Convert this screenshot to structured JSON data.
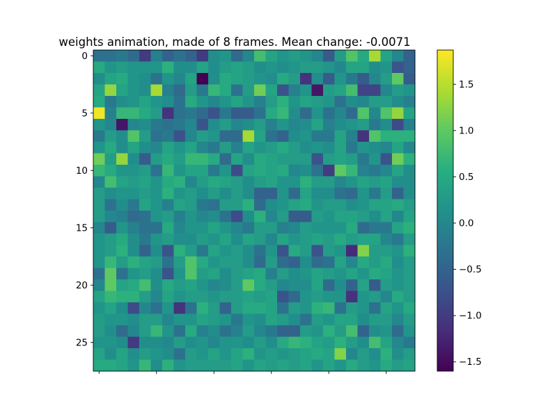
{
  "chart_data": {
    "type": "heatmap",
    "title": "weights animation, made of 8 frames. Mean change: -0.0071",
    "rows": 28,
    "cols": 28,
    "vmin": -1.6,
    "vmax": 1.87,
    "colormap": "viridis",
    "y_ticks": [
      0,
      5,
      10,
      15,
      20,
      25
    ],
    "y_tick_labels": [
      "0",
      "5",
      "10",
      "15",
      "20",
      "25"
    ],
    "x_ticks": [
      0,
      5,
      10,
      15,
      20,
      25
    ],
    "x_tick_labels": [
      "",
      "",
      "",
      "",
      "",
      ""
    ],
    "colorbar": {
      "ticks": [
        1.5,
        1.0,
        0.5,
        0.0,
        -0.5,
        -1.0,
        -1.5
      ],
      "tick_labels": [
        "1.5",
        "1.0",
        "0.5",
        "0.0",
        "−0.5",
        "−1.0",
        "−1.5"
      ]
    },
    "grid": false,
    "legend": "none",
    "values": [
      [
        -0.3,
        -0.3,
        -0.2,
        -0.4,
        -1.0,
        -0.1,
        -0.5,
        -0.3,
        -0.5,
        -1.0,
        0.1,
        0.2,
        -0.4,
        0.0,
        0.8,
        0.4,
        0.2,
        0.3,
        0.2,
        0.0,
        -0.6,
        0.3,
        0.9,
        0.5,
        1.4,
        0.4,
        0.0,
        -0.5
      ],
      [
        0.5,
        0.2,
        0.3,
        0.2,
        0.2,
        0.2,
        0.6,
        0.1,
        0.1,
        0.4,
        0.1,
        0.3,
        0.4,
        0.3,
        0.1,
        0.2,
        0.1,
        0.2,
        0.3,
        0.3,
        0.2,
        0.0,
        0.4,
        0.4,
        0.1,
        0.2,
        -0.7,
        -0.5
      ],
      [
        0.1,
        0.4,
        0.5,
        0.2,
        0.1,
        -0.3,
        0.2,
        0.0,
        0.4,
        -1.6,
        0.1,
        0.5,
        0.4,
        0.3,
        0.2,
        0.1,
        0.5,
        0.3,
        -1.1,
        0.1,
        -0.6,
        0.2,
        -0.2,
        -0.6,
        0.0,
        0.3,
        1.0,
        -0.6
      ],
      [
        0.4,
        1.3,
        0.4,
        0.2,
        0.1,
        1.4,
        -0.1,
        -0.4,
        0.3,
        -0.2,
        0.7,
        0.5,
        -0.3,
        0.3,
        1.1,
        0.4,
        -0.7,
        -0.1,
        0.2,
        -1.4,
        0.3,
        0.4,
        0.8,
        -0.9,
        -0.9,
        0.0,
        0.3,
        0.2
      ],
      [
        0.5,
        -0.2,
        0.1,
        0.2,
        0.4,
        0.2,
        0.1,
        -0.3,
        0.5,
        0.2,
        0.0,
        0.2,
        0.4,
        0.2,
        -0.1,
        0.3,
        0.6,
        0.2,
        0.4,
        0.3,
        0.2,
        -0.3,
        0.1,
        0.0,
        0.3,
        0.3,
        0.1,
        -0.1
      ],
      [
        1.8,
        -0.1,
        0.7,
        0.7,
        0.5,
        0.3,
        -1.1,
        -0.3,
        -0.2,
        -0.4,
        -0.7,
        -0.2,
        -0.6,
        -0.6,
        -0.3,
        0.5,
        0.7,
        0.1,
        -0.4,
        0.2,
        -0.3,
        0.0,
        -0.4,
        0.9,
        0.0,
        0.9,
        1.3,
        0.4
      ],
      [
        0.2,
        0.0,
        -1.4,
        0.0,
        0.1,
        -0.2,
        -0.3,
        -0.2,
        0.0,
        -0.7,
        0.1,
        0.3,
        0.0,
        0.1,
        0.3,
        -0.1,
        0.2,
        0.0,
        0.1,
        0.4,
        -0.1,
        0.1,
        0.2,
        0.3,
        -0.2,
        0.1,
        -0.8,
        -0.1
      ],
      [
        -0.2,
        0.3,
        0.1,
        0.9,
        0.3,
        -0.3,
        -0.2,
        -0.7,
        0.0,
        0.3,
        0.2,
        -0.4,
        -0.4,
        1.4,
        0.4,
        -0.3,
        -0.5,
        0.1,
        0.2,
        -0.2,
        -0.2,
        0.4,
        -0.1,
        -1.1,
        0.9,
        0.6,
        0.6,
        0.6
      ],
      [
        0.2,
        0.5,
        0.1,
        0.4,
        0.1,
        0.0,
        0.4,
        0.2,
        0.4,
        0.0,
        -0.2,
        0.3,
        -0.1,
        0.4,
        0.2,
        0.3,
        0.5,
        0.3,
        0.1,
        0.2,
        0.1,
        0.4,
        -0.2,
        0.2,
        0.1,
        0.0,
        0.4,
        0.0
      ],
      [
        1.1,
        0.3,
        1.3,
        0.1,
        -0.6,
        0.3,
        0.5,
        0.3,
        0.7,
        0.7,
        0.5,
        -0.4,
        0.4,
        0.1,
        0.5,
        0.4,
        0.3,
        0.3,
        0.3,
        -0.7,
        0.3,
        0.4,
        0.3,
        -0.2,
        0.2,
        -0.7,
        1.1,
        0.6
      ],
      [
        0.7,
        0.5,
        0.2,
        0.2,
        0.3,
        -0.3,
        0.7,
        0.2,
        0.4,
        0.4,
        -0.2,
        0.2,
        -0.8,
        0.4,
        0.5,
        0.4,
        0.5,
        0.0,
        0.1,
        -0.3,
        -1.0,
        1.0,
        0.7,
        -0.1,
        -0.2,
        0.0,
        0.4,
        0.1
      ],
      [
        0.0,
        0.8,
        0.4,
        0.3,
        0.4,
        0.2,
        0.5,
        0.6,
        0.0,
        0.3,
        0.5,
        0.4,
        0.3,
        0.1,
        0.3,
        0.4,
        0.2,
        0.2,
        0.6,
        0.3,
        0.3,
        0.0,
        0.2,
        0.4,
        0.3,
        0.4,
        0.1,
        0.1
      ],
      [
        0.3,
        0.1,
        0.2,
        0.2,
        0.3,
        0.2,
        0.6,
        0.2,
        0.3,
        0.1,
        0.3,
        0.1,
        0.3,
        0.1,
        -0.5,
        -0.5,
        0.2,
        -0.4,
        0.4,
        0.1,
        0.1,
        -0.3,
        -0.4,
        0.2,
        -0.2,
        0.3,
        -0.5,
        0.1
      ],
      [
        0.3,
        -0.3,
        0.1,
        -0.2,
        0.4,
        0.2,
        -0.1,
        0.4,
        0.3,
        -0.2,
        -0.3,
        0.3,
        0.3,
        0.6,
        -0.4,
        0.1,
        0.2,
        0.4,
        0.5,
        0.2,
        0.3,
        0.3,
        0.1,
        0.2,
        0.4,
        0.4,
        0.5,
        0.3
      ],
      [
        0.3,
        0.0,
        -0.1,
        -0.4,
        -0.3,
        0.2,
        0.3,
        -0.1,
        0.2,
        0.0,
        0.1,
        -0.3,
        -0.8,
        0.1,
        0.6,
        0.0,
        0.3,
        -0.6,
        -0.6,
        0.3,
        0.2,
        0.4,
        0.4,
        0.3,
        0.1,
        0.4,
        0.0,
        0.4
      ],
      [
        0.0,
        -0.6,
        0.2,
        -0.1,
        -0.3,
        -0.3,
        0.5,
        0.0,
        0.2,
        0.2,
        0.4,
        0.2,
        0.0,
        -0.2,
        0.3,
        0.3,
        -0.1,
        0.0,
        0.3,
        0.2,
        0.2,
        0.2,
        0.5,
        -0.4,
        -0.2,
        -0.2,
        0.4,
        0.6
      ],
      [
        0.2,
        0.3,
        0.5,
        0.1,
        -0.2,
        0.2,
        0.3,
        0.1,
        0.1,
        0.3,
        0.2,
        0.4,
        0.1,
        0.4,
        0.3,
        0.0,
        0.4,
        0.2,
        0.3,
        0.4,
        0.3,
        0.5,
        0.3,
        0.4,
        0.4,
        0.0,
        -0.2,
        0.3
      ],
      [
        0.2,
        0.3,
        0.6,
        0.1,
        -0.5,
        0.1,
        -0.7,
        0.6,
        0.3,
        -0.2,
        0.4,
        0.2,
        0.3,
        0.1,
        -0.3,
        0.2,
        -0.7,
        0.5,
        0.3,
        -0.7,
        0.3,
        0.2,
        -1.2,
        1.2,
        0.3,
        0.3,
        0.2,
        0.6
      ],
      [
        0.2,
        0.7,
        0.3,
        0.6,
        0.4,
        0.3,
        -0.3,
        0.3,
        0.9,
        0.5,
        0.2,
        0.3,
        0.3,
        0.1,
        -0.4,
        0.3,
        -0.4,
        -0.5,
        0.1,
        -0.4,
        -0.3,
        0.4,
        0.0,
        0.5,
        0.3,
        0.5,
        0.1,
        0.3
      ],
      [
        -0.3,
        1.0,
        -0.3,
        0.2,
        0.3,
        0.1,
        -0.7,
        0.2,
        0.9,
        0.3,
        0.4,
        0.1,
        0.3,
        0.4,
        0.5,
        -0.1,
        0.3,
        0.1,
        0.2,
        0.4,
        0.3,
        0.2,
        0.4,
        0.2,
        0.5,
        0.4,
        0.2,
        0.3
      ],
      [
        0.0,
        1.0,
        0.4,
        0.5,
        0.8,
        0.1,
        0.5,
        0.3,
        0.4,
        0.2,
        0.0,
        0.1,
        0.3,
        1.0,
        0.5,
        0.3,
        0.0,
        0.1,
        0.1,
        0.4,
        -0.4,
        0.1,
        -0.5,
        0.4,
        -0.6,
        0.3,
        0.2,
        0.3
      ],
      [
        0.4,
        0.7,
        0.6,
        0.6,
        0.3,
        0.0,
        0.4,
        0.2,
        0.3,
        0.3,
        0.2,
        0.3,
        0.3,
        0.4,
        0.3,
        0.4,
        -0.7,
        -0.4,
        0.2,
        0.3,
        0.2,
        0.2,
        -1.1,
        0.2,
        0.3,
        0.0,
        0.5,
        0.3
      ],
      [
        0.2,
        0.4,
        0.1,
        -0.8,
        0.0,
        -0.3,
        0.2,
        -1.1,
        -0.3,
        0.6,
        0.3,
        -0.5,
        0.3,
        0.5,
        0.5,
        0.4,
        -0.3,
        0.3,
        0.2,
        0.6,
        0.7,
        -0.3,
        0.3,
        0.2,
        -0.3,
        0.4,
        0.2,
        0.5
      ],
      [
        0.3,
        0.2,
        0.2,
        0.1,
        0.3,
        0.3,
        0.0,
        0.2,
        0.2,
        0.4,
        0.3,
        0.2,
        -0.2,
        0.2,
        0.1,
        0.4,
        0.3,
        0.1,
        -0.3,
        0.3,
        0.2,
        0.4,
        0.4,
        0.1,
        0.3,
        0.3,
        0.0,
        0.3
      ],
      [
        0.3,
        0.1,
        -0.4,
        0.0,
        0.3,
        0.7,
        0.2,
        -0.3,
        0.5,
        -0.1,
        0.1,
        -0.3,
        -0.1,
        0.3,
        0.0,
        -0.2,
        -0.5,
        -0.5,
        0.3,
        0.2,
        0.6,
        0.3,
        0.8,
        -0.5,
        0.1,
        0.2,
        -0.4,
        0.2
      ],
      [
        0.2,
        0.2,
        0.1,
        -1.0,
        0.1,
        0.1,
        0.0,
        0.3,
        0.1,
        0.2,
        0.0,
        0.2,
        0.2,
        0.1,
        0.3,
        0.1,
        0.5,
        0.7,
        0.6,
        0.4,
        0.3,
        0.6,
        0.3,
        0.1,
        0.8,
        0.4,
        0.0,
        -0.2
      ],
      [
        0.4,
        0.1,
        0.4,
        0.1,
        0.3,
        0.2,
        0.1,
        -0.3,
        0.3,
        0.2,
        0.4,
        0.2,
        0.4,
        0.6,
        0.2,
        0.3,
        0.2,
        0.3,
        0.4,
        0.5,
        0.4,
        1.2,
        0.0,
        0.3,
        0.1,
        0.6,
        0.1,
        0.3
      ],
      [
        0.5,
        0.5,
        0.4,
        0.2,
        0.7,
        0.1,
        0.6,
        0.2,
        0.3,
        0.3,
        0.3,
        0.3,
        0.4,
        0.2,
        0.4,
        0.3,
        0.4,
        0.3,
        0.4,
        0.2,
        0.4,
        0.2,
        0.5,
        0.3,
        0.2,
        0.5,
        0.3,
        0.4
      ]
    ]
  }
}
